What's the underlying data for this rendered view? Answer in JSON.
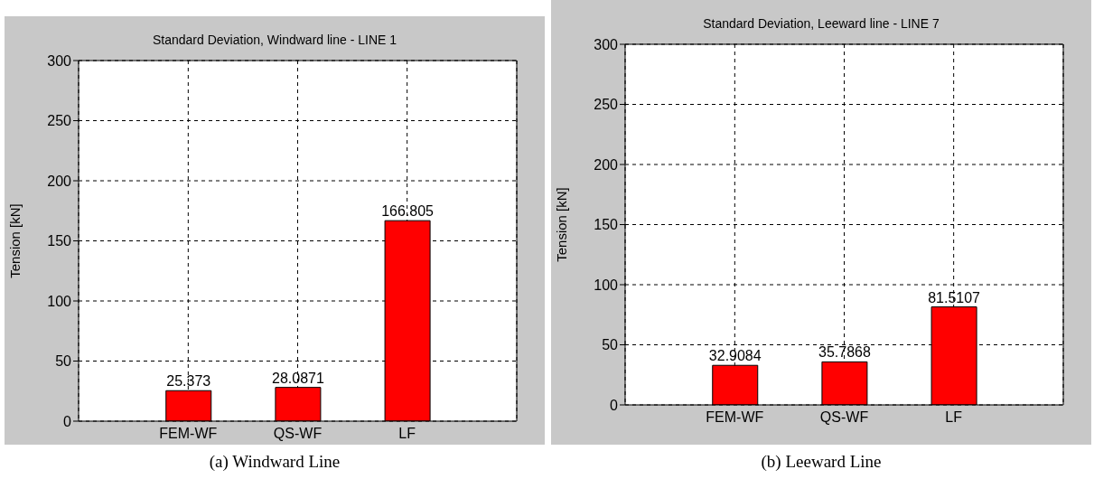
{
  "chart_data": [
    {
      "type": "bar",
      "title": "Standard Deviation, Windward line - LINE 1",
      "ylabel": "Tension [kN]",
      "categories": [
        "FEM-WF",
        "QS-WF",
        "LF"
      ],
      "values": [
        25.373,
        28.0871,
        166.805
      ],
      "color": "#ff0000",
      "ylim": [
        0,
        300
      ],
      "yticks": [
        0,
        50,
        100,
        150,
        200,
        250,
        300
      ],
      "grid": true,
      "data_labels": true,
      "annotations": [
        "(a) Windward Line"
      ]
    },
    {
      "type": "bar",
      "title": "Standard Deviation, Leeward line - LINE 7",
      "ylabel": "Tension [kN]",
      "categories": [
        "FEM-WF",
        "QS-WF",
        "LF"
      ],
      "values": [
        32.9084,
        35.7868,
        81.5107
      ],
      "color": "#ff0000",
      "ylim": [
        0,
        300
      ],
      "yticks": [
        0,
        50,
        100,
        150,
        200,
        250,
        300
      ],
      "grid": true,
      "data_labels": true,
      "annotations": [
        "(b) Leeward Line"
      ]
    }
  ]
}
